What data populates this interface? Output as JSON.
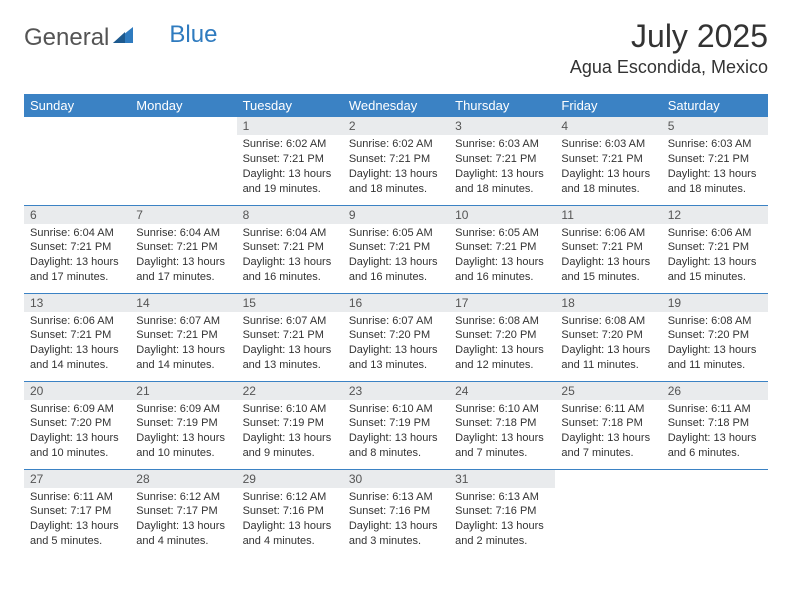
{
  "brand": {
    "part1": "General",
    "part2": "Blue"
  },
  "title": "July 2025",
  "location": "Agua Escondida, Mexico",
  "colors": {
    "header_bg": "#3b82c4",
    "header_text": "#ffffff",
    "daynum_bg": "#e9ebed",
    "row_divider": "#3b82c4",
    "body_text": "#333333",
    "logo_gray": "#545454",
    "logo_blue": "#2f7bbf",
    "page_bg": "#ffffff"
  },
  "day_headers": [
    "Sunday",
    "Monday",
    "Tuesday",
    "Wednesday",
    "Thursday",
    "Friday",
    "Saturday"
  ],
  "weeks": [
    [
      {
        "n": "",
        "lines": []
      },
      {
        "n": "",
        "lines": []
      },
      {
        "n": "1",
        "lines": [
          "Sunrise: 6:02 AM",
          "Sunset: 7:21 PM",
          "Daylight: 13 hours",
          "and 19 minutes."
        ]
      },
      {
        "n": "2",
        "lines": [
          "Sunrise: 6:02 AM",
          "Sunset: 7:21 PM",
          "Daylight: 13 hours",
          "and 18 minutes."
        ]
      },
      {
        "n": "3",
        "lines": [
          "Sunrise: 6:03 AM",
          "Sunset: 7:21 PM",
          "Daylight: 13 hours",
          "and 18 minutes."
        ]
      },
      {
        "n": "4",
        "lines": [
          "Sunrise: 6:03 AM",
          "Sunset: 7:21 PM",
          "Daylight: 13 hours",
          "and 18 minutes."
        ]
      },
      {
        "n": "5",
        "lines": [
          "Sunrise: 6:03 AM",
          "Sunset: 7:21 PM",
          "Daylight: 13 hours",
          "and 18 minutes."
        ]
      }
    ],
    [
      {
        "n": "6",
        "lines": [
          "Sunrise: 6:04 AM",
          "Sunset: 7:21 PM",
          "Daylight: 13 hours",
          "and 17 minutes."
        ]
      },
      {
        "n": "7",
        "lines": [
          "Sunrise: 6:04 AM",
          "Sunset: 7:21 PM",
          "Daylight: 13 hours",
          "and 17 minutes."
        ]
      },
      {
        "n": "8",
        "lines": [
          "Sunrise: 6:04 AM",
          "Sunset: 7:21 PM",
          "Daylight: 13 hours",
          "and 16 minutes."
        ]
      },
      {
        "n": "9",
        "lines": [
          "Sunrise: 6:05 AM",
          "Sunset: 7:21 PM",
          "Daylight: 13 hours",
          "and 16 minutes."
        ]
      },
      {
        "n": "10",
        "lines": [
          "Sunrise: 6:05 AM",
          "Sunset: 7:21 PM",
          "Daylight: 13 hours",
          "and 16 minutes."
        ]
      },
      {
        "n": "11",
        "lines": [
          "Sunrise: 6:06 AM",
          "Sunset: 7:21 PM",
          "Daylight: 13 hours",
          "and 15 minutes."
        ]
      },
      {
        "n": "12",
        "lines": [
          "Sunrise: 6:06 AM",
          "Sunset: 7:21 PM",
          "Daylight: 13 hours",
          "and 15 minutes."
        ]
      }
    ],
    [
      {
        "n": "13",
        "lines": [
          "Sunrise: 6:06 AM",
          "Sunset: 7:21 PM",
          "Daylight: 13 hours",
          "and 14 minutes."
        ]
      },
      {
        "n": "14",
        "lines": [
          "Sunrise: 6:07 AM",
          "Sunset: 7:21 PM",
          "Daylight: 13 hours",
          "and 14 minutes."
        ]
      },
      {
        "n": "15",
        "lines": [
          "Sunrise: 6:07 AM",
          "Sunset: 7:21 PM",
          "Daylight: 13 hours",
          "and 13 minutes."
        ]
      },
      {
        "n": "16",
        "lines": [
          "Sunrise: 6:07 AM",
          "Sunset: 7:20 PM",
          "Daylight: 13 hours",
          "and 13 minutes."
        ]
      },
      {
        "n": "17",
        "lines": [
          "Sunrise: 6:08 AM",
          "Sunset: 7:20 PM",
          "Daylight: 13 hours",
          "and 12 minutes."
        ]
      },
      {
        "n": "18",
        "lines": [
          "Sunrise: 6:08 AM",
          "Sunset: 7:20 PM",
          "Daylight: 13 hours",
          "and 11 minutes."
        ]
      },
      {
        "n": "19",
        "lines": [
          "Sunrise: 6:08 AM",
          "Sunset: 7:20 PM",
          "Daylight: 13 hours",
          "and 11 minutes."
        ]
      }
    ],
    [
      {
        "n": "20",
        "lines": [
          "Sunrise: 6:09 AM",
          "Sunset: 7:20 PM",
          "Daylight: 13 hours",
          "and 10 minutes."
        ]
      },
      {
        "n": "21",
        "lines": [
          "Sunrise: 6:09 AM",
          "Sunset: 7:19 PM",
          "Daylight: 13 hours",
          "and 10 minutes."
        ]
      },
      {
        "n": "22",
        "lines": [
          "Sunrise: 6:10 AM",
          "Sunset: 7:19 PM",
          "Daylight: 13 hours",
          "and 9 minutes."
        ]
      },
      {
        "n": "23",
        "lines": [
          "Sunrise: 6:10 AM",
          "Sunset: 7:19 PM",
          "Daylight: 13 hours",
          "and 8 minutes."
        ]
      },
      {
        "n": "24",
        "lines": [
          "Sunrise: 6:10 AM",
          "Sunset: 7:18 PM",
          "Daylight: 13 hours",
          "and 7 minutes."
        ]
      },
      {
        "n": "25",
        "lines": [
          "Sunrise: 6:11 AM",
          "Sunset: 7:18 PM",
          "Daylight: 13 hours",
          "and 7 minutes."
        ]
      },
      {
        "n": "26",
        "lines": [
          "Sunrise: 6:11 AM",
          "Sunset: 7:18 PM",
          "Daylight: 13 hours",
          "and 6 minutes."
        ]
      }
    ],
    [
      {
        "n": "27",
        "lines": [
          "Sunrise: 6:11 AM",
          "Sunset: 7:17 PM",
          "Daylight: 13 hours",
          "and 5 minutes."
        ]
      },
      {
        "n": "28",
        "lines": [
          "Sunrise: 6:12 AM",
          "Sunset: 7:17 PM",
          "Daylight: 13 hours",
          "and 4 minutes."
        ]
      },
      {
        "n": "29",
        "lines": [
          "Sunrise: 6:12 AM",
          "Sunset: 7:16 PM",
          "Daylight: 13 hours",
          "and 4 minutes."
        ]
      },
      {
        "n": "30",
        "lines": [
          "Sunrise: 6:13 AM",
          "Sunset: 7:16 PM",
          "Daylight: 13 hours",
          "and 3 minutes."
        ]
      },
      {
        "n": "31",
        "lines": [
          "Sunrise: 6:13 AM",
          "Sunset: 7:16 PM",
          "Daylight: 13 hours",
          "and 2 minutes."
        ]
      },
      {
        "n": "",
        "lines": []
      },
      {
        "n": "",
        "lines": []
      }
    ]
  ]
}
